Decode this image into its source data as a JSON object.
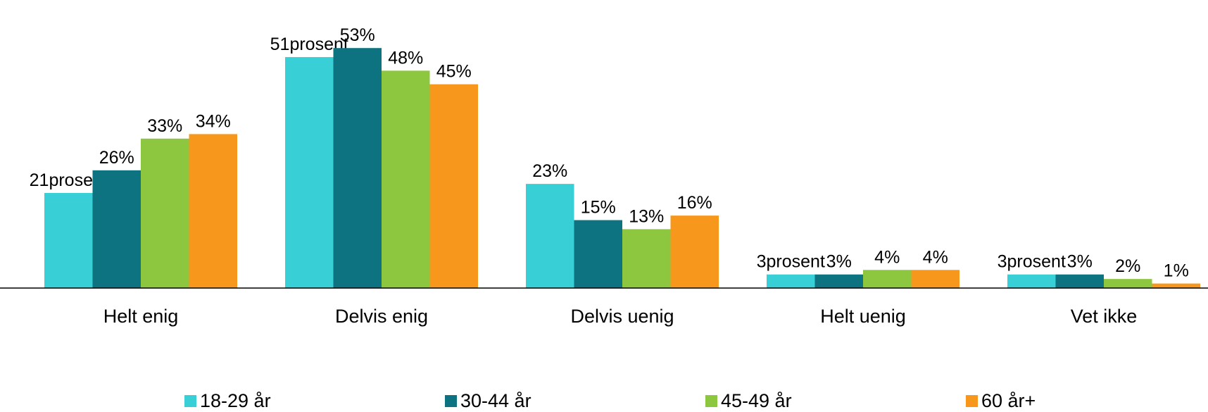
{
  "chart_data": {
    "type": "bar",
    "categories": [
      "Helt enig",
      "Delvis enig",
      "Delvis uenig",
      "Helt uenig",
      "Vet ikke"
    ],
    "series": [
      {
        "name": "18-29 år",
        "color": "#38CFD6",
        "values": [
          21,
          51,
          23,
          3,
          3
        ],
        "labels": [
          "21prosent",
          "51prosent",
          "23%",
          "3prosent",
          "3prosent"
        ]
      },
      {
        "name": "30-44 år",
        "color": "#0E7380",
        "values": [
          26,
          53,
          15,
          3,
          3
        ],
        "labels": [
          "26%",
          "53%",
          "15%",
          "3%",
          "3%"
        ]
      },
      {
        "name": "45-49 år",
        "color": "#8DC63F",
        "values": [
          33,
          48,
          13,
          4,
          2
        ],
        "labels": [
          "33%",
          "48%",
          "13%",
          "4%",
          "2%"
        ]
      },
      {
        "name": "60 år+",
        "color": "#F7981D",
        "values": [
          34,
          45,
          16,
          4,
          1
        ],
        "labels": [
          "34%",
          "45%",
          "16%",
          "4%",
          "1%"
        ]
      }
    ],
    "ylim": [
      0,
      60
    ],
    "grid": false,
    "legend": "bottom"
  }
}
